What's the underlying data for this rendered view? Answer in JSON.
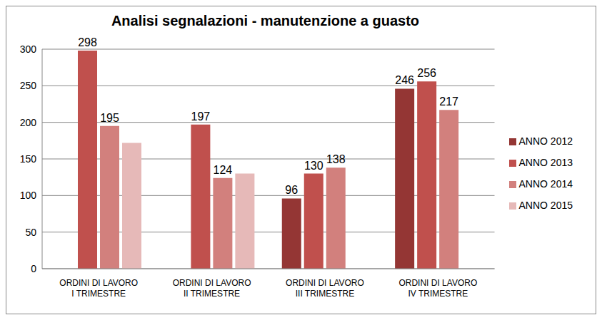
{
  "chart_data": {
    "type": "bar",
    "title": "Analisi segnalazioni - manutenzione a guasto",
    "categories": [
      "ORDINI DI LAVORO\nI TRIMESTRE",
      "ORDINI DI LAVORO\nII TRIMESTRE",
      "ORDINI DI LAVORO\nIII TRIMESTRE",
      "ORDINI DI LAVORO\nIV TRIMESTRE"
    ],
    "series": [
      {
        "name": "ANNO 2012",
        "color": "#943634",
        "values": [
          0,
          0,
          96,
          246
        ]
      },
      {
        "name": "ANNO 2013",
        "color": "#c0504d",
        "values": [
          298,
          197,
          130,
          256
        ]
      },
      {
        "name": "ANNO 2014",
        "color": "#d2807d",
        "values": [
          195,
          124,
          138,
          217
        ]
      },
      {
        "name": "ANNO 2015",
        "color": "#e6b9b8",
        "values": [
          172,
          130,
          null,
          null
        ],
        "data_labels": false
      }
    ],
    "ylim": [
      0,
      300
    ],
    "yticks": [
      0,
      50,
      100,
      150,
      200,
      250,
      300
    ],
    "grid": true,
    "legend": "right",
    "data_labels": true
  }
}
